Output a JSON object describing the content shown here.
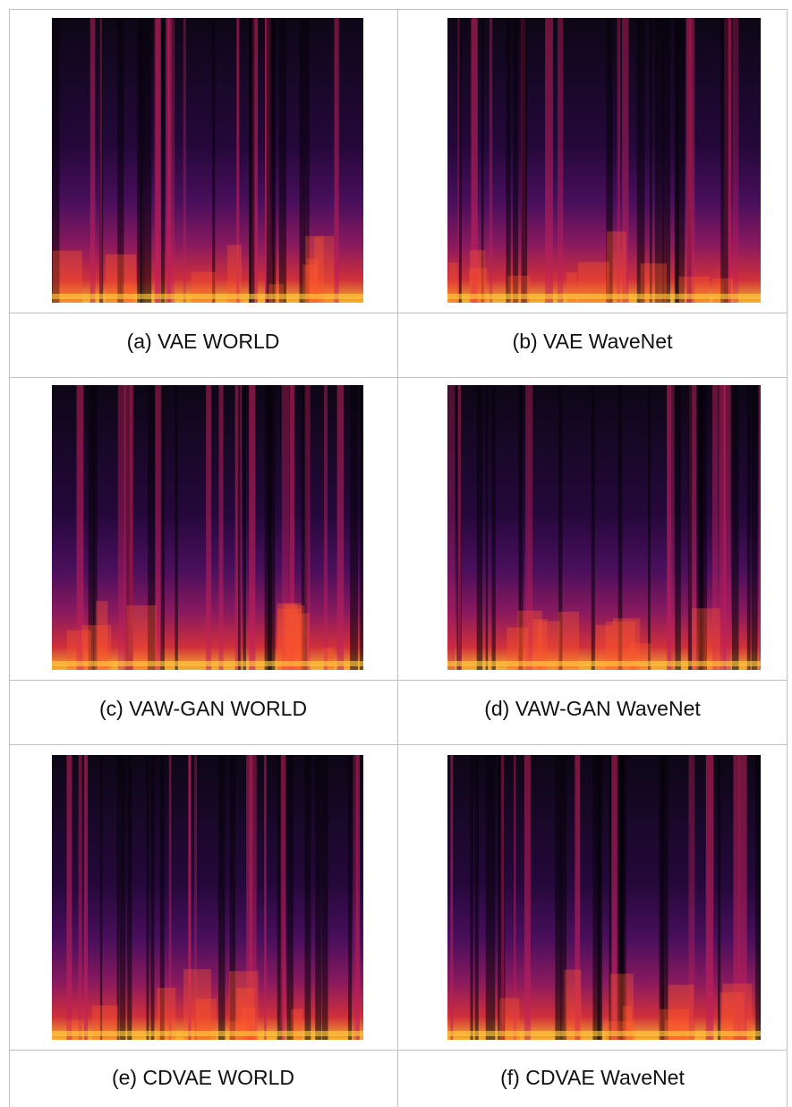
{
  "figure": {
    "panels": [
      {
        "caption": "(a) VAE WORLD"
      },
      {
        "caption": "(b) VAE WaveNet"
      },
      {
        "caption": "(c) VAW-GAN WORLD"
      },
      {
        "caption": "(d) VAW-GAN WaveNet"
      },
      {
        "caption": "(e) CDVAE WORLD"
      },
      {
        "caption": "(f) CDVAE WaveNet"
      }
    ]
  }
}
